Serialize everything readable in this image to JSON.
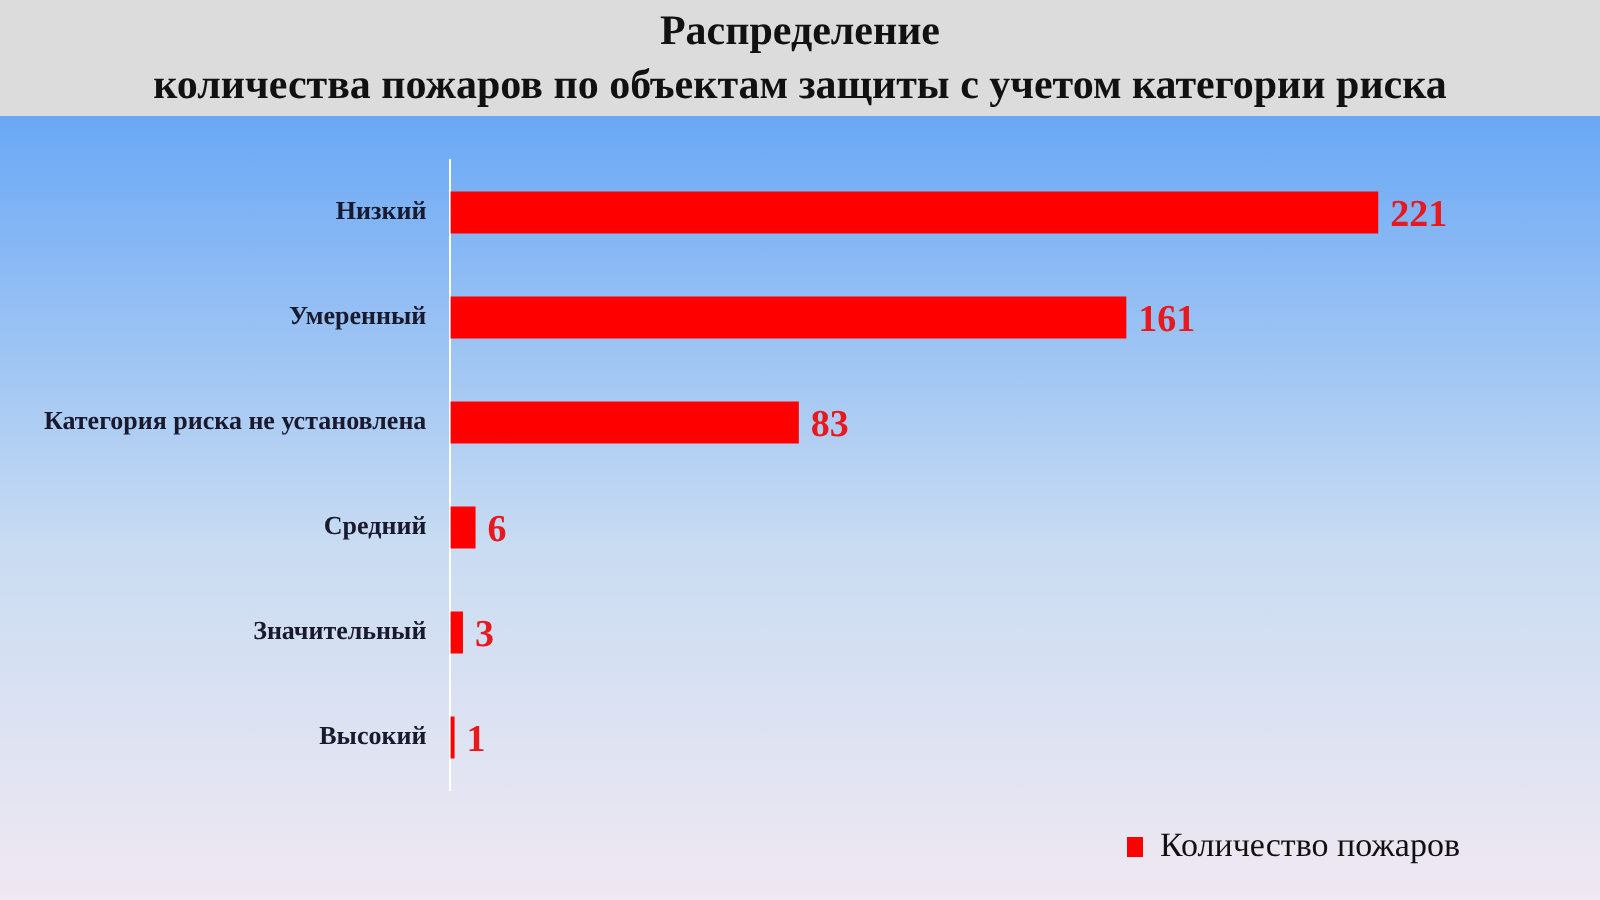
{
  "chart_data": {
    "type": "bar",
    "orientation": "horizontal",
    "title": "Распределение\nколичества пожаров по объектам защиты с учетом категории риска",
    "categories": [
      "Низкий",
      "Умеренный",
      "Категория риска не установлена",
      "Средний",
      "Значительный",
      "Высокий"
    ],
    "series": [
      {
        "name": "Количество пожаров",
        "color": "#ff0000",
        "values": [
          221,
          161,
          83,
          6,
          3,
          1
        ]
      }
    ],
    "data_labels": true,
    "legend": "bottom right"
  }
}
